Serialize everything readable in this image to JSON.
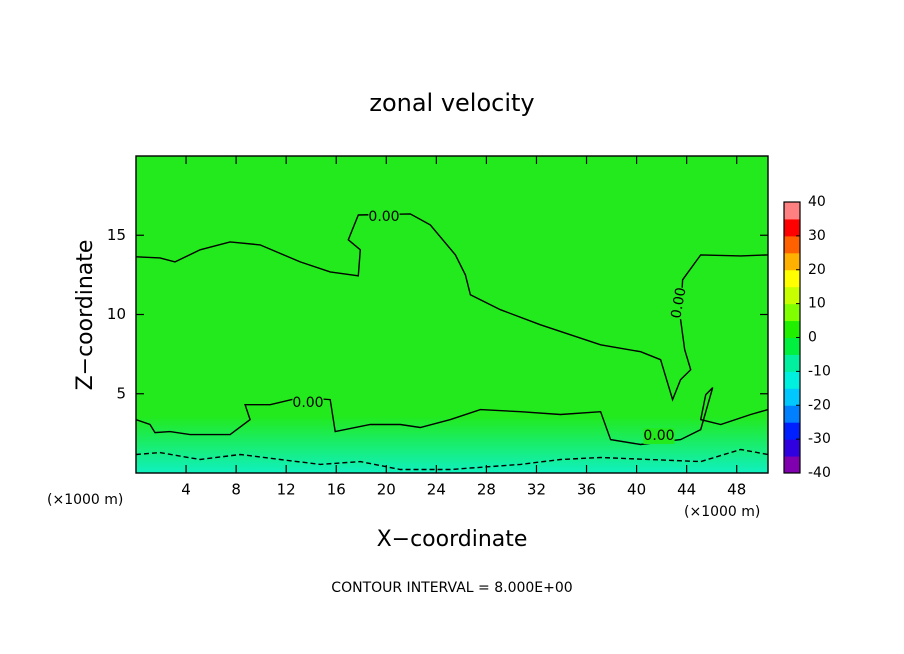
{
  "chart_data": {
    "type": "contour",
    "title": "zonal velocity",
    "x_label": "X−coordinate",
    "y_label": "Z−coordinate",
    "x_unit_left": "(×1000 m)",
    "x_unit_right": "(×1000 m)",
    "annotation": "CONTOUR INTERVAL = 8.000E+00",
    "xlim": [
      0,
      50.5
    ],
    "ylim": [
      0,
      20
    ],
    "xticks": [
      4,
      8,
      12,
      16,
      20,
      24,
      28,
      32,
      36,
      40,
      44,
      48
    ],
    "yticks": [
      5,
      10,
      15
    ],
    "contours": [
      {
        "level": 0,
        "label": "0.00",
        "style": "solid",
        "x": [
          0,
          1.92,
          3.12,
          5.12,
          7.52,
          9.92,
          13.12,
          15.52,
          17.76,
          17.92,
          16.96,
          17.76,
          21.92,
          23.52,
          25.52,
          26.32,
          26.72,
          29.12,
          32.32,
          37.12,
          40.32,
          41.92,
          42.88,
          43.52,
          44.32,
          43.84,
          43.52,
          43.68,
          45.12,
          48.32,
          50.5
        ],
        "y": [
          13.64,
          13.57,
          13.32,
          14.08,
          14.58,
          14.39,
          13.32,
          12.69,
          12.44,
          14.08,
          14.71,
          16.28,
          16.35,
          15.65,
          13.76,
          12.5,
          11.24,
          10.3,
          9.35,
          8.09,
          7.65,
          7.15,
          4.63,
          5.89,
          6.52,
          7.78,
          9.67,
          12.19,
          13.76,
          13.7,
          13.76
        ]
      },
      {
        "level": 0,
        "label": "0.00",
        "style": "solid",
        "x": [
          0,
          1.12,
          1.52,
          2.72,
          4.32,
          7.52,
          9.12,
          8.72,
          10.72,
          13.12,
          15.52,
          15.92,
          18.72,
          21.12,
          22.72,
          25.12,
          27.52,
          30.72,
          33.92,
          37.12,
          37.92,
          40.32,
          43.52,
          45.12,
          46.08,
          45.52,
          45.12,
          46.72,
          49.12,
          50.5
        ],
        "y": [
          3.37,
          3.06,
          2.55,
          2.61,
          2.42,
          2.42,
          3.37,
          4.31,
          4.31,
          4.76,
          4.63,
          2.61,
          3.06,
          3.06,
          2.87,
          3.37,
          4.0,
          3.87,
          3.69,
          3.87,
          2.11,
          1.8,
          2.11,
          2.74,
          5.39,
          4.94,
          3.37,
          3.06,
          3.69,
          4.0
        ]
      },
      {
        "level": -8,
        "style": "dashed",
        "x": [
          0,
          1.92,
          5.12,
          8.32,
          11.52,
          14.72,
          17.92,
          21.12,
          25.12,
          30.72,
          33.92,
          37.12,
          45.12,
          48.32,
          50.5
        ],
        "y": [
          1.17,
          1.29,
          0.85,
          1.17,
          0.85,
          0.54,
          0.72,
          0.22,
          0.22,
          0.54,
          0.85,
          0.98,
          0.72,
          1.48,
          1.17
        ]
      }
    ],
    "colorbar": {
      "lim": [
        -40,
        40
      ],
      "ticks": [
        -40,
        -30,
        -20,
        -10,
        0,
        10,
        20,
        30,
        40
      ],
      "colors": [
        "#8000b0",
        "#3000e0",
        "#0020ff",
        "#0080ff",
        "#00c8ff",
        "#00f0e0",
        "#00f0a0",
        "#00f040",
        "#20f000",
        "#80ff00",
        "#c8ff00",
        "#ffff00",
        "#ffb000",
        "#ff6000",
        "#ff0000",
        "#ff8080"
      ]
    },
    "field_color": "#22ea1c",
    "low_color": "#10f0c0"
  }
}
